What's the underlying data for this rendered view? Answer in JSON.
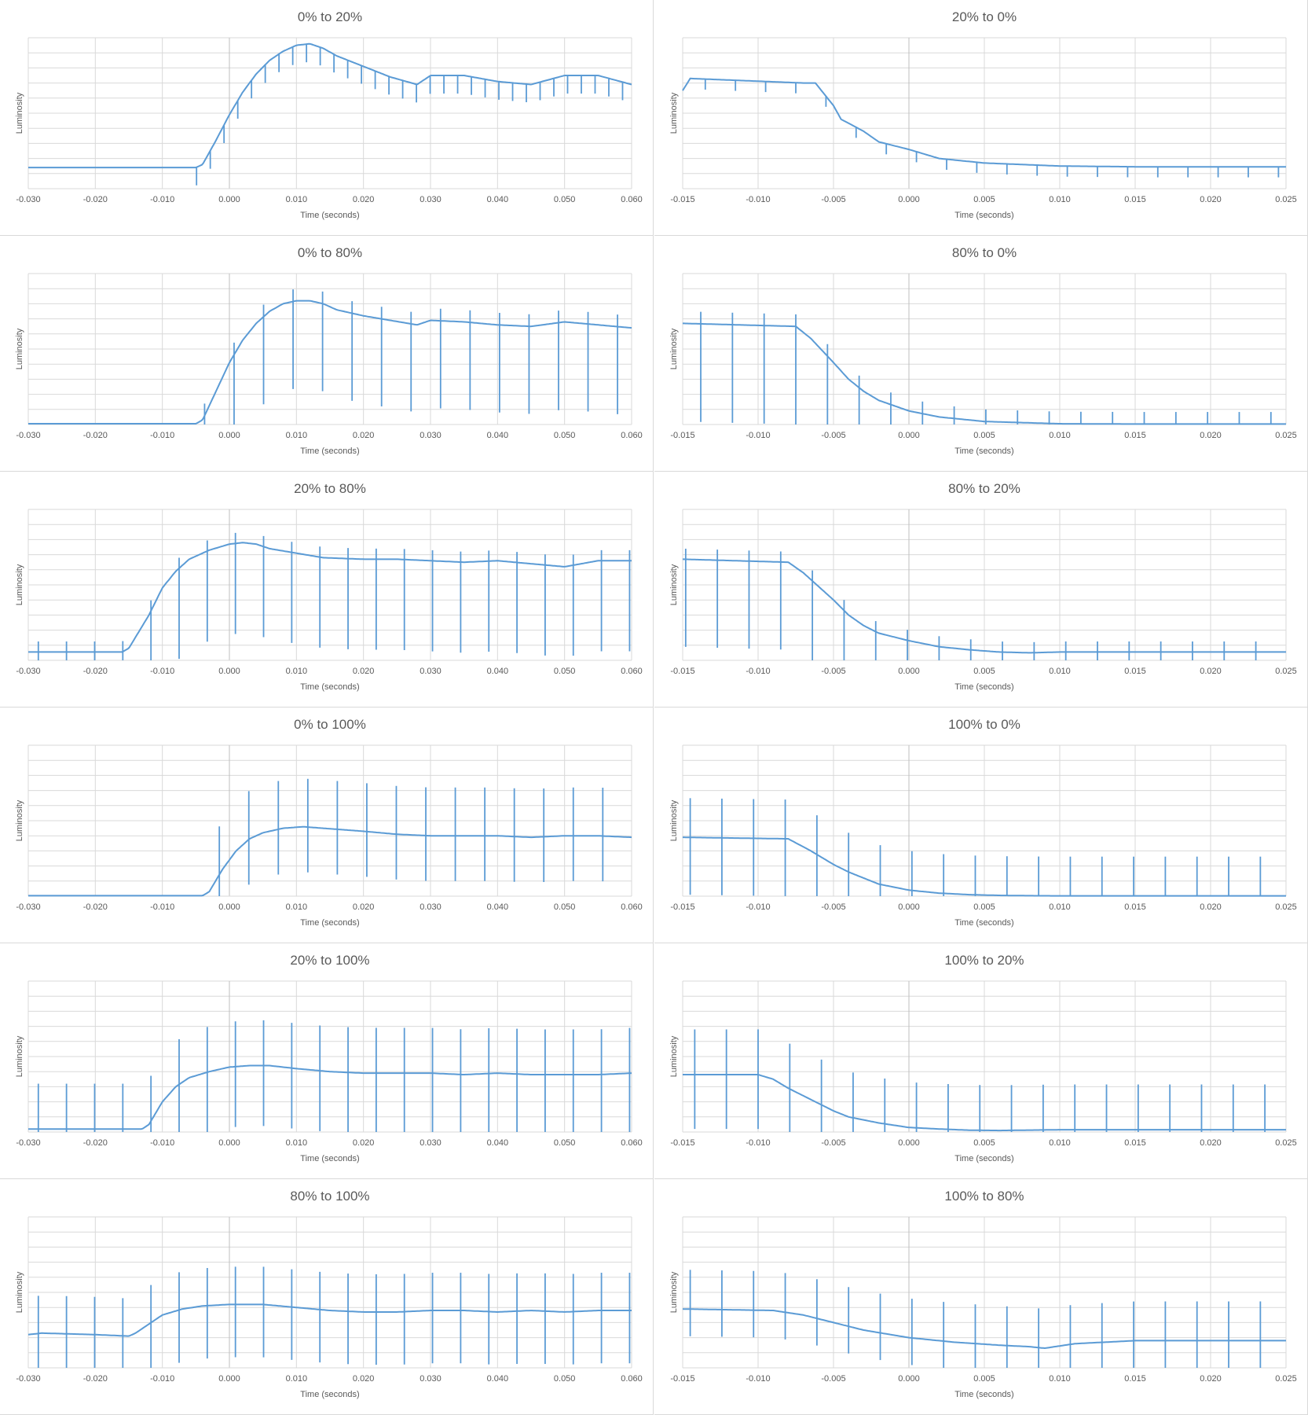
{
  "colors": {
    "series": "#5b9bd5",
    "grid": "#d9d9d9",
    "text": "#595959",
    "zero_line": "#bfbfbf"
  },
  "chart_data": [
    {
      "type": "line",
      "title": "0% to 20%",
      "xlabel": "Time (seconds)",
      "ylabel": "Luminosity",
      "xlim": [
        -0.03,
        0.06
      ],
      "ylim": [
        0,
        10
      ],
      "x_ticks": [
        "-0.030",
        "-0.020",
        "-0.010",
        "0.000",
        "0.010",
        "0.020",
        "0.030",
        "0.040",
        "0.050",
        "0.060"
      ],
      "series": [
        {
          "x": [
            -0.03,
            -0.005,
            -0.004,
            -0.002,
            0.0,
            0.002,
            0.004,
            0.006,
            0.008,
            0.01,
            0.012,
            0.014,
            0.016,
            0.02,
            0.024,
            0.028,
            0.03,
            0.035,
            0.04,
            0.045,
            0.05,
            0.055,
            0.06
          ],
          "y": [
            1.4,
            1.4,
            1.6,
            3.2,
            4.9,
            6.4,
            7.6,
            8.5,
            9.1,
            9.5,
            9.6,
            9.3,
            8.8,
            8.1,
            7.4,
            6.9,
            7.5,
            7.5,
            7.1,
            6.9,
            7.5,
            7.5,
            6.9
          ]
        }
      ],
      "spikes": {
        "start": -0.0295,
        "period": 0.00205,
        "from": -0.006,
        "neg": 1.2,
        "pos": 0
      }
    },
    {
      "type": "line",
      "title": "20% to 0%",
      "xlabel": "Time (seconds)",
      "ylabel": "Luminosity",
      "xlim": [
        -0.015,
        0.025
      ],
      "ylim": [
        0,
        10
      ],
      "x_ticks": [
        "-0.015",
        "-0.010",
        "-0.005",
        "0.000",
        "0.005",
        "0.010",
        "0.015",
        "0.020",
        "0.025"
      ],
      "series": [
        {
          "x": [
            -0.015,
            -0.0145,
            -0.012,
            -0.007,
            -0.0062,
            -0.005,
            -0.0045,
            -0.003,
            -0.002,
            0.0,
            0.002,
            0.005,
            0.01,
            0.015,
            0.02,
            0.025
          ],
          "y": [
            6.5,
            7.3,
            7.2,
            7.0,
            7.0,
            5.5,
            4.6,
            3.8,
            3.1,
            2.6,
            2.0,
            1.7,
            1.5,
            1.45,
            1.45,
            1.45
          ]
        }
      ],
      "spikes": {
        "start": -0.0135,
        "period": 0.002,
        "from": -0.015,
        "neg": 0.7,
        "pos": 0
      }
    },
    {
      "type": "line",
      "title": "0% to 80%",
      "xlabel": "Time (seconds)",
      "ylabel": "Luminosity",
      "xlim": [
        -0.03,
        0.06
      ],
      "ylim": [
        0,
        10
      ],
      "x_ticks": [
        "-0.030",
        "-0.020",
        "-0.010",
        "0.000",
        "0.010",
        "0.020",
        "0.030",
        "0.040",
        "0.050",
        "0.060"
      ],
      "series": [
        {
          "x": [
            -0.03,
            -0.005,
            -0.004,
            -0.002,
            0.0,
            0.002,
            0.004,
            0.006,
            0.008,
            0.01,
            0.012,
            0.014,
            0.016,
            0.02,
            0.024,
            0.028,
            0.03,
            0.035,
            0.04,
            0.045,
            0.05,
            0.055,
            0.06
          ],
          "y": [
            0.05,
            0.05,
            0.3,
            2.2,
            4.1,
            5.6,
            6.7,
            7.5,
            8.0,
            8.2,
            8.2,
            8.0,
            7.6,
            7.2,
            6.9,
            6.6,
            6.9,
            6.8,
            6.6,
            6.5,
            6.8,
            6.6,
            6.4
          ]
        }
      ],
      "spikes": {
        "start": -0.0037,
        "period": 0.0044,
        "from": -0.005,
        "neg": 5.8,
        "pos": 0.8
      }
    },
    {
      "type": "line",
      "title": "80% to 0%",
      "xlabel": "Time (seconds)",
      "ylabel": "Luminosity",
      "xlim": [
        -0.015,
        0.025
      ],
      "ylim": [
        0,
        10
      ],
      "x_ticks": [
        "-0.015",
        "-0.010",
        "-0.005",
        "0.000",
        "0.005",
        "0.010",
        "0.015",
        "0.020",
        "0.025"
      ],
      "series": [
        {
          "x": [
            -0.015,
            -0.0075,
            -0.0065,
            -0.005,
            -0.004,
            -0.003,
            -0.002,
            0.0,
            0.002,
            0.005,
            0.01,
            0.015,
            0.02,
            0.025
          ],
          "y": [
            6.7,
            6.5,
            5.7,
            4.1,
            3.0,
            2.2,
            1.6,
            0.9,
            0.5,
            0.2,
            0.05,
            0.03,
            0.03,
            0.03
          ]
        }
      ],
      "spikes": {
        "start": -0.0138,
        "period": 0.0021,
        "from": -0.015,
        "neg": 6.5,
        "pos": 0.8
      }
    },
    {
      "type": "line",
      "title": "20% to 80%",
      "xlabel": "Time (seconds)",
      "ylabel": "Luminosity",
      "xlim": [
        -0.03,
        0.06
      ],
      "ylim": [
        0,
        10
      ],
      "x_ticks": [
        "-0.030",
        "-0.020",
        "-0.010",
        "0.000",
        "0.010",
        "0.020",
        "0.030",
        "0.040",
        "0.050",
        "0.060"
      ],
      "series": [
        {
          "x": [
            -0.03,
            -0.016,
            -0.015,
            -0.012,
            -0.01,
            -0.008,
            -0.006,
            -0.003,
            0.0,
            0.002,
            0.004,
            0.006,
            0.01,
            0.014,
            0.02,
            0.025,
            0.03,
            0.035,
            0.04,
            0.045,
            0.05,
            0.055,
            0.06
          ],
          "y": [
            0.55,
            0.55,
            0.8,
            3.0,
            4.8,
            5.9,
            6.7,
            7.3,
            7.7,
            7.8,
            7.7,
            7.4,
            7.1,
            6.8,
            6.7,
            6.7,
            6.6,
            6.5,
            6.6,
            6.4,
            6.2,
            6.6,
            6.6
          ]
        }
      ],
      "spikes": {
        "start": -0.0285,
        "period": 0.0042,
        "from": -0.03,
        "neg": 6.0,
        "pos": 0.7
      }
    },
    {
      "type": "line",
      "title": "80% to 20%",
      "xlabel": "Time (seconds)",
      "ylabel": "Luminosity",
      "xlim": [
        -0.015,
        0.025
      ],
      "ylim": [
        0,
        10
      ],
      "x_ticks": [
        "-0.015",
        "-0.010",
        "-0.005",
        "0.000",
        "0.005",
        "0.010",
        "0.015",
        "0.020",
        "0.025"
      ],
      "series": [
        {
          "x": [
            -0.015,
            -0.008,
            -0.007,
            -0.005,
            -0.004,
            -0.003,
            -0.002,
            0.0,
            0.002,
            0.004,
            0.006,
            0.008,
            0.01,
            0.015,
            0.02,
            0.025
          ],
          "y": [
            6.7,
            6.5,
            5.8,
            4.0,
            3.0,
            2.3,
            1.8,
            1.3,
            0.9,
            0.7,
            0.55,
            0.5,
            0.55,
            0.55,
            0.55,
            0.55
          ]
        }
      ],
      "spikes": {
        "start": -0.0148,
        "period": 0.0021,
        "from": -0.015,
        "neg": 5.8,
        "pos": 0.7
      }
    },
    {
      "type": "line",
      "title": "0% to 100%",
      "xlabel": "Time (seconds)",
      "ylabel": "Luminosity",
      "xlim": [
        -0.03,
        0.06
      ],
      "ylim": [
        0,
        10
      ],
      "x_ticks": [
        "-0.030",
        "-0.020",
        "-0.010",
        "0.000",
        "0.010",
        "0.020",
        "0.030",
        "0.040",
        "0.050",
        "0.060"
      ],
      "series": [
        {
          "x": [
            -0.03,
            -0.004,
            -0.003,
            -0.001,
            0.001,
            0.003,
            0.005,
            0.008,
            0.011,
            0.014,
            0.02,
            0.025,
            0.03,
            0.035,
            0.04,
            0.045,
            0.05,
            0.055,
            0.06
          ],
          "y": [
            0.03,
            0.03,
            0.3,
            1.8,
            3.0,
            3.8,
            4.2,
            4.5,
            4.6,
            4.5,
            4.3,
            4.1,
            4.0,
            4.0,
            4.0,
            3.9,
            4.0,
            4.0,
            3.9
          ]
        }
      ],
      "spikes": {
        "start": -0.0015,
        "period": 0.0044,
        "from": -0.004,
        "neg": 3.0,
        "pos": 3.2
      }
    },
    {
      "type": "line",
      "title": "100% to 0%",
      "xlabel": "Time (seconds)",
      "ylabel": "Luminosity",
      "xlim": [
        -0.015,
        0.025
      ],
      "ylim": [
        0,
        10
      ],
      "x_ticks": [
        "-0.015",
        "-0.010",
        "-0.005",
        "0.000",
        "0.005",
        "0.010",
        "0.015",
        "0.020",
        "0.025"
      ],
      "series": [
        {
          "x": [
            -0.015,
            -0.008,
            -0.0065,
            -0.005,
            -0.004,
            -0.003,
            -0.002,
            0.0,
            0.002,
            0.004,
            0.006,
            0.008,
            0.01,
            0.015,
            0.025
          ],
          "y": [
            3.9,
            3.8,
            3.0,
            2.1,
            1.6,
            1.2,
            0.8,
            0.4,
            0.2,
            0.1,
            0.05,
            0.03,
            0.02,
            0.02,
            0.02
          ]
        }
      ],
      "spikes": {
        "start": -0.0145,
        "period": 0.0021,
        "from": -0.015,
        "neg": 3.8,
        "pos": 2.6
      }
    },
    {
      "type": "line",
      "title": "20% to 100%",
      "xlabel": "Time (seconds)",
      "ylabel": "Luminosity",
      "xlim": [
        -0.03,
        0.06
      ],
      "ylim": [
        0,
        10
      ],
      "x_ticks": [
        "-0.030",
        "-0.020",
        "-0.010",
        "0.000",
        "0.010",
        "0.020",
        "0.030",
        "0.040",
        "0.050",
        "0.060"
      ],
      "series": [
        {
          "x": [
            -0.03,
            -0.013,
            -0.012,
            -0.01,
            -0.008,
            -0.006,
            -0.003,
            0.0,
            0.003,
            0.006,
            0.01,
            0.015,
            0.02,
            0.025,
            0.03,
            0.035,
            0.04,
            0.045,
            0.05,
            0.055,
            0.06
          ],
          "y": [
            0.2,
            0.2,
            0.5,
            2.0,
            3.0,
            3.6,
            4.0,
            4.3,
            4.4,
            4.4,
            4.2,
            4.0,
            3.9,
            3.9,
            3.9,
            3.8,
            3.9,
            3.8,
            3.8,
            3.8,
            3.9
          ]
        }
      ],
      "spikes": {
        "start": -0.0285,
        "period": 0.0042,
        "from": -0.03,
        "neg": 4.0,
        "pos": 3.0
      }
    },
    {
      "type": "line",
      "title": "100% to 20%",
      "xlabel": "Time (seconds)",
      "ylabel": "Luminosity",
      "xlim": [
        -0.015,
        0.025
      ],
      "ylim": [
        0,
        10
      ],
      "x_ticks": [
        "-0.015",
        "-0.010",
        "-0.005",
        "0.000",
        "0.005",
        "0.010",
        "0.015",
        "0.020",
        "0.025"
      ],
      "series": [
        {
          "x": [
            -0.015,
            -0.01,
            -0.009,
            -0.008,
            -0.006,
            -0.005,
            -0.004,
            -0.002,
            0.0,
            0.002,
            0.004,
            0.006,
            0.01,
            0.015,
            0.02,
            0.025
          ],
          "y": [
            3.8,
            3.8,
            3.5,
            2.9,
            1.9,
            1.4,
            1.0,
            0.6,
            0.3,
            0.2,
            0.12,
            0.1,
            0.15,
            0.15,
            0.15,
            0.15
          ]
        }
      ],
      "spikes": {
        "start": -0.0142,
        "period": 0.0021,
        "from": -0.015,
        "neg": 3.6,
        "pos": 3.0
      }
    },
    {
      "type": "line",
      "title": "80% to 100%",
      "xlabel": "Time (seconds)",
      "ylabel": "Luminosity",
      "xlim": [
        -0.03,
        0.06
      ],
      "ylim": [
        0,
        10
      ],
      "x_ticks": [
        "-0.030",
        "-0.020",
        "-0.010",
        "0.000",
        "0.010",
        "0.020",
        "0.030",
        "0.040",
        "0.050",
        "0.060"
      ],
      "series": [
        {
          "x": [
            -0.03,
            -0.028,
            -0.02,
            -0.015,
            -0.014,
            -0.012,
            -0.01,
            -0.007,
            -0.004,
            0.0,
            0.005,
            0.01,
            0.015,
            0.02,
            0.025,
            0.03,
            0.035,
            0.04,
            0.045,
            0.05,
            0.055,
            0.06
          ],
          "y": [
            2.2,
            2.3,
            2.2,
            2.1,
            2.3,
            2.9,
            3.5,
            3.9,
            4.1,
            4.2,
            4.2,
            4.0,
            3.8,
            3.7,
            3.7,
            3.8,
            3.8,
            3.7,
            3.8,
            3.7,
            3.8,
            3.8
          ]
        }
      ],
      "spikes": {
        "start": -0.0285,
        "period": 0.0042,
        "from": -0.03,
        "neg": 3.5,
        "pos": 2.5
      }
    },
    {
      "type": "line",
      "title": "100% to 80%",
      "xlabel": "Time (seconds)",
      "ylabel": "Luminosity",
      "xlim": [
        -0.015,
        0.025
      ],
      "ylim": [
        0,
        10
      ],
      "x_ticks": [
        "-0.015",
        "-0.010",
        "-0.005",
        "0.000",
        "0.005",
        "0.010",
        "0.015",
        "0.020",
        "0.025"
      ],
      "series": [
        {
          "x": [
            -0.015,
            -0.009,
            -0.007,
            -0.005,
            -0.003,
            0.0,
            0.003,
            0.006,
            0.008,
            0.009,
            0.011,
            0.015,
            0.02,
            0.025
          ],
          "y": [
            3.9,
            3.8,
            3.5,
            3.0,
            2.5,
            2.0,
            1.7,
            1.5,
            1.4,
            1.3,
            1.6,
            1.8,
            1.8,
            1.8
          ]
        }
      ],
      "spikes": {
        "start": -0.0145,
        "period": 0.0021,
        "from": -0.015,
        "neg": 1.8,
        "pos": 2.6
      }
    }
  ]
}
